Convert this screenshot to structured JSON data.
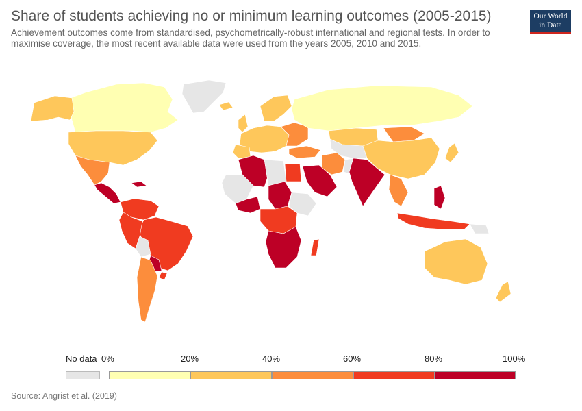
{
  "header": {
    "title": "Share of students achieving no or minimum learning outcomes (2005-2015)",
    "subtitle": "Achievement outcomes come from standardised, psychometrically-robust international and regional tests. In order to maximise coverage, the most recent available data were used from the years 2005, 2010 and 2015."
  },
  "logo": {
    "line1": "Our World",
    "line2": "in Data"
  },
  "legend": {
    "no_data_label": "No data",
    "no_data_color": "#e6e6e6",
    "ticks": [
      "0%",
      "20%",
      "40%",
      "60%",
      "80%",
      "100%"
    ],
    "bins": [
      {
        "range": "0-20%",
        "color": "#ffffb2"
      },
      {
        "range": "20-40%",
        "color": "#fec75b"
      },
      {
        "range": "40-60%",
        "color": "#fc8d3c"
      },
      {
        "range": "60-80%",
        "color": "#f03b20"
      },
      {
        "range": "80-100%",
        "color": "#bd0026"
      }
    ]
  },
  "source": "Source: Angrist et al. (2019)"
}
